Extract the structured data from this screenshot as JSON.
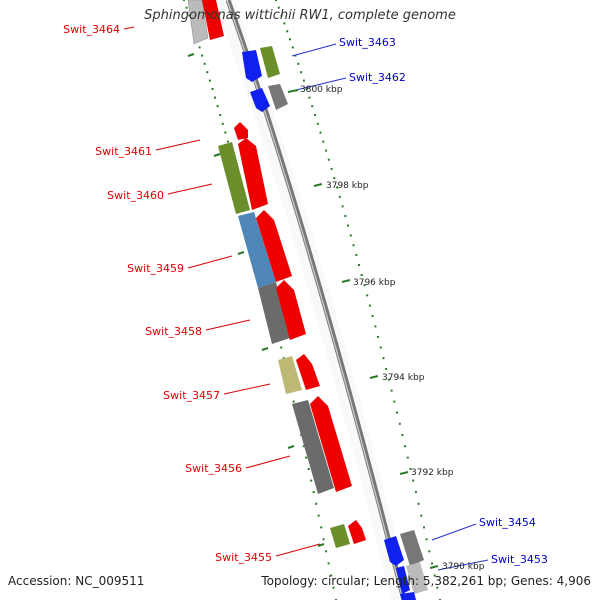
{
  "header": {
    "title": "Sphingomonas wittichii RW1, complete genome"
  },
  "footer": {
    "accession": "Accession: NC_009511",
    "summary": "Topology: circular; Length: 5,382,261 bp; Genes: 4,906"
  },
  "colors": {
    "forward_strand": "#ff0000",
    "reverse_strand_label": "#0000cc",
    "backbone": "#888888",
    "tick": "#006600"
  },
  "scale_labels": [
    "3800 kbp",
    "3798 kbp",
    "3796 kbp",
    "3794 kbp",
    "3792 kbp",
    "3790 kbp"
  ],
  "genes": [
    {
      "name": "Swit_3464"
    },
    {
      "name": "Swit_3463"
    },
    {
      "name": "Swit_3462"
    },
    {
      "name": "Swit_3461"
    },
    {
      "name": "Swit_3460"
    },
    {
      "name": "Swit_3459"
    },
    {
      "name": "Swit_3458"
    },
    {
      "name": "Swit_3457"
    },
    {
      "name": "Swit_3456"
    },
    {
      "name": "Swit_3455"
    },
    {
      "name": "Swit_3454"
    },
    {
      "name": "Swit_3453"
    }
  ]
}
